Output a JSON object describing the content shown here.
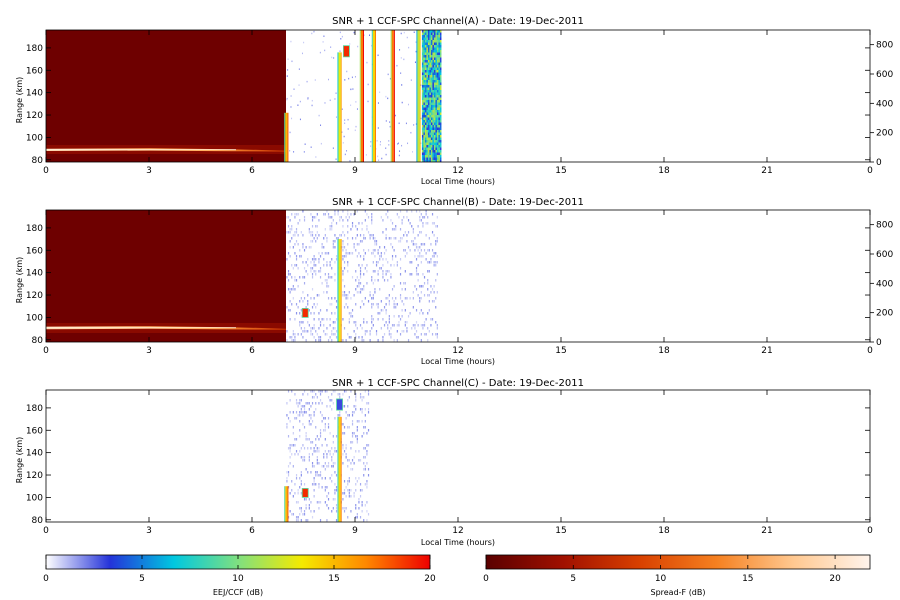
{
  "colormaps": {
    "eej_ccf": [
      "#ffffff",
      "#2433d9",
      "#00c8e0",
      "#7fe080",
      "#f5ea00",
      "#ff8800",
      "#ee0000"
    ],
    "spread_f": [
      "#5a0000",
      "#a01000",
      "#d84000",
      "#f58020",
      "#ffc890",
      "#fff4ec"
    ]
  },
  "chart_data": [
    {
      "type": "heatmap",
      "title": "SNR + 1 CCF-SPC Channel(A) - Date: 19-Dec-2011",
      "xlabel": "Local Time (hours)",
      "ylabel": "Range (km)",
      "xlim": [
        0,
        24
      ],
      "ylim": [
        78,
        196
      ],
      "xticks": [
        "0",
        "3",
        "6",
        "9",
        "12",
        "15",
        "18",
        "21",
        "0"
      ],
      "yticks": [
        "80",
        "100",
        "120",
        "140",
        "160",
        "180"
      ],
      "right_axis": {
        "ticks": [
          "0",
          "200",
          "400",
          "600",
          "800"
        ],
        "lim": [
          0,
          900
        ]
      },
      "spread_f_block": {
        "x": [
          0,
          7.0
        ],
        "y": [
          78,
          196
        ],
        "level_db": 1
      },
      "spread_f_layer": {
        "x": [
          0,
          7.0
        ],
        "range_km": 92,
        "peak_db": 18
      },
      "eej_strips": [
        {
          "x": 7.0,
          "y": [
            78,
            122
          ],
          "color_db": 15
        },
        {
          "x": 8.55,
          "y": [
            78,
            176
          ],
          "color_db": 13
        },
        {
          "x": 8.75,
          "y": [
            172,
            182
          ],
          "color_db": 19
        },
        {
          "x": 9.2,
          "y": [
            78,
            196
          ],
          "color_db": 17
        },
        {
          "x": 9.55,
          "y": [
            78,
            196
          ],
          "color_db": 14
        },
        {
          "x": 10.1,
          "y": [
            78,
            196
          ],
          "color_db": 17
        },
        {
          "x": 10.85,
          "y": [
            78,
            196
          ],
          "color_db": 12
        }
      ],
      "eej_noise_band": {
        "x": [
          10.95,
          11.5
        ],
        "y": [
          78,
          196
        ]
      }
    },
    {
      "type": "heatmap",
      "title": "SNR + 1 CCF-SPC Channel(B) - Date: 19-Dec-2011",
      "xlabel": "Local Time (hours)",
      "ylabel": "Range (km)",
      "xlim": [
        0,
        24
      ],
      "ylim": [
        78,
        196
      ],
      "xticks": [
        "0",
        "3",
        "6",
        "9",
        "12",
        "15",
        "18",
        "21",
        "0"
      ],
      "yticks": [
        "80",
        "100",
        "120",
        "140",
        "160",
        "180"
      ],
      "right_axis": {
        "ticks": [
          "0",
          "200",
          "400",
          "600",
          "800"
        ],
        "lim": [
          0,
          900
        ]
      },
      "spread_f_block": {
        "x": [
          0,
          7.0
        ],
        "y": [
          78,
          196
        ],
        "level_db": 1
      },
      "spread_f_layer": {
        "x": [
          0,
          7.0
        ],
        "range_km": 92,
        "peak_db": 18
      },
      "eej_strips": [
        {
          "x": 8.55,
          "y": [
            78,
            170
          ],
          "color_db": 13
        },
        {
          "x": 7.55,
          "y": [
            100,
            108
          ],
          "color_db": 19
        }
      ],
      "eej_noise_band": {
        "x": [
          7.0,
          11.4
        ],
        "y": [
          78,
          196
        ],
        "faint": true
      }
    },
    {
      "type": "heatmap",
      "title": "SNR + 1 CCF-SPC Channel(C) - Date: 19-Dec-2011",
      "xlabel": "Local Time (hours)",
      "ylabel": "Range (km)",
      "xlim": [
        0,
        24
      ],
      "ylim": [
        78,
        196
      ],
      "xticks": [
        "0",
        "3",
        "6",
        "9",
        "12",
        "15",
        "18",
        "21",
        "0"
      ],
      "yticks": [
        "80",
        "100",
        "120",
        "140",
        "160",
        "180"
      ],
      "eej_strips": [
        {
          "x": 7.0,
          "y": [
            78,
            110
          ],
          "color_db": 15
        },
        {
          "x": 8.55,
          "y": [
            78,
            172
          ],
          "color_db": 14
        },
        {
          "x": 7.55,
          "y": [
            100,
            108
          ],
          "color_db": 19
        },
        {
          "x": 8.55,
          "y": [
            178,
            188
          ],
          "color_db": 3
        }
      ],
      "eej_noise_band": {
        "x": [
          7.0,
          9.4
        ],
        "y": [
          78,
          196
        ],
        "faint": true
      }
    },
    {
      "type": "colorbar",
      "label": "EEJ/CCF (dB)",
      "range": [
        0,
        20
      ],
      "ticks": [
        "0",
        "5",
        "10",
        "15",
        "20"
      ]
    },
    {
      "type": "colorbar",
      "label": "Spread-F (dB)",
      "range": [
        0,
        22
      ],
      "ticks": [
        "0",
        "5",
        "10",
        "15",
        "20"
      ]
    }
  ]
}
